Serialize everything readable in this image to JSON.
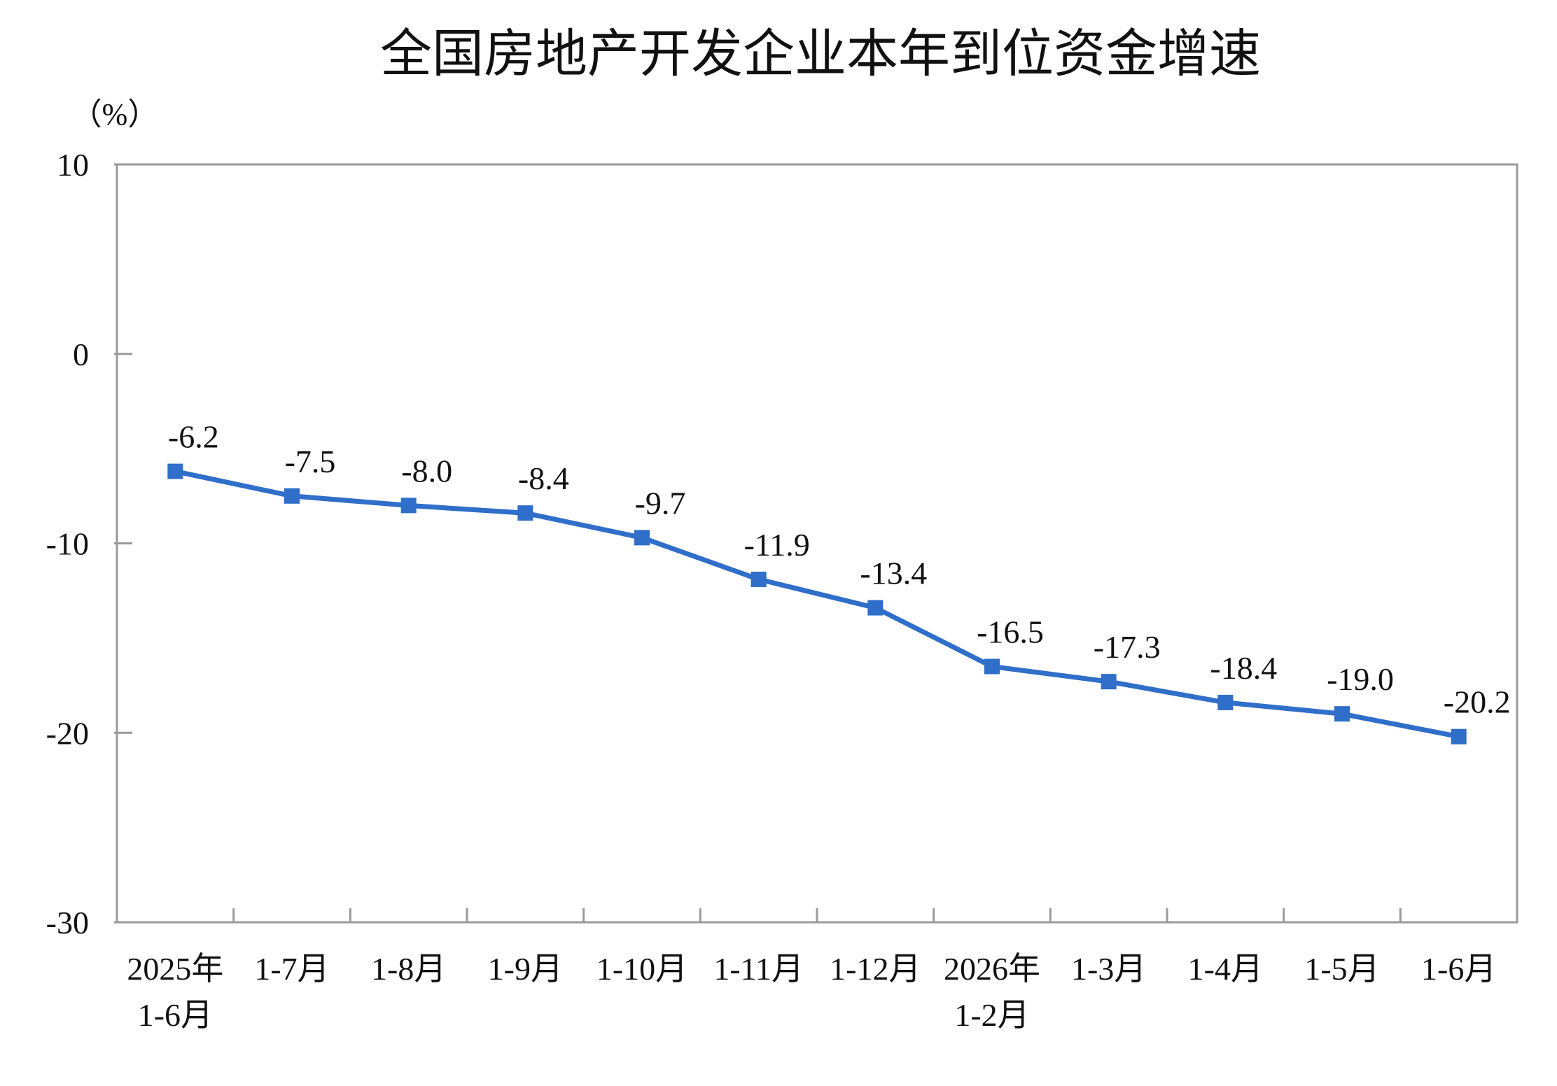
{
  "chart_data": {
    "type": "line",
    "title": "全国房地产开发企业本年到位资金增速",
    "ylabel": "（%）",
    "ylim": [
      -30,
      10
    ],
    "yticks": [
      "10",
      "0",
      "-10",
      "-20",
      "-30"
    ],
    "ytick_values": [
      10,
      0,
      -10,
      -20,
      -30
    ],
    "categories": [
      [
        "2025年",
        "1-6月"
      ],
      [
        "1-7月"
      ],
      [
        "1-8月"
      ],
      [
        "1-9月"
      ],
      [
        "1-10月"
      ],
      [
        "1-11月"
      ],
      [
        "1-12月"
      ],
      [
        "2026年",
        "1-2月"
      ],
      [
        "1-3月"
      ],
      [
        "1-4月"
      ],
      [
        "1-5月"
      ],
      [
        "1-6月"
      ]
    ],
    "series": [
      {
        "values": [
          -6.2,
          -7.5,
          -8.0,
          -8.4,
          -9.7,
          -11.9,
          -13.4,
          -16.5,
          -17.3,
          -18.4,
          -19.0,
          -20.2
        ],
        "labels": [
          "-6.2",
          "-7.5",
          "-8.0",
          "-8.4",
          "-9.7",
          "-11.9",
          "-13.4",
          "-16.5",
          "-17.3",
          "-18.4",
          "-19.0",
          "-20.2"
        ],
        "color": "#2f6ec9"
      }
    ],
    "grid": false,
    "legend": "none"
  }
}
